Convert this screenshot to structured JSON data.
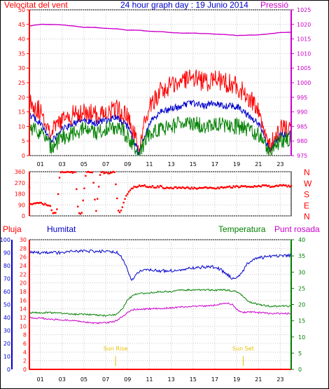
{
  "chart_data": [
    {
      "type": "line",
      "title": "24 hour graph day : 19 Junio 2014",
      "ylabel_left": "Velocitat del vent",
      "ylabel_right": "Pressió",
      "x_ticks": [
        "01",
        "03",
        "05",
        "07",
        "09",
        "11",
        "13",
        "15",
        "17",
        "19",
        "21",
        "23"
      ],
      "xlim": [
        0,
        24
      ],
      "ylim_left": [
        0,
        50
      ],
      "ylim_right": [
        975,
        1025
      ],
      "y_ticks_left": [
        "0",
        "5",
        "10",
        "15",
        "20",
        "25",
        "30",
        "35",
        "40",
        "45",
        "50"
      ],
      "y_ticks_right": [
        "975",
        "980",
        "985",
        "990",
        "995",
        "1000",
        "1005",
        "1010",
        "1015",
        "1020",
        "1025"
      ],
      "grid": true,
      "series": [
        {
          "color": "#ff0000",
          "axis": "left",
          "x": [
            0,
            1,
            2,
            3,
            4,
            5,
            6,
            7,
            8,
            9,
            10,
            11,
            12,
            13,
            14,
            15,
            16,
            17,
            18,
            19,
            20,
            21,
            22,
            23,
            24
          ],
          "values": [
            19,
            15,
            8,
            12,
            14,
            15,
            14,
            15,
            16,
            13,
            3,
            16,
            22,
            24,
            26,
            27,
            25,
            26,
            25,
            24,
            20,
            16,
            3,
            9,
            10
          ]
        },
        {
          "color": "#0000cc",
          "axis": "left",
          "x": [
            0,
            1,
            2,
            3,
            4,
            5,
            6,
            7,
            8,
            9,
            10,
            11,
            12,
            13,
            14,
            15,
            16,
            17,
            18,
            19,
            20,
            21,
            22,
            23,
            24
          ],
          "values": [
            14,
            11,
            5,
            9,
            11,
            12,
            11,
            12,
            13,
            10,
            1,
            11,
            15,
            16,
            17,
            18,
            17,
            18,
            17,
            17,
            14,
            11,
            2,
            7,
            8
          ]
        },
        {
          "color": "#008000",
          "axis": "left",
          "x": [
            0,
            1,
            2,
            3,
            4,
            5,
            6,
            7,
            8,
            9,
            10,
            11,
            12,
            13,
            14,
            15,
            16,
            17,
            18,
            19,
            20,
            21,
            22,
            23,
            24
          ],
          "values": [
            10,
            8,
            3,
            6,
            8,
            9,
            8,
            9,
            10,
            7,
            0,
            8,
            9,
            10,
            11,
            11,
            10,
            11,
            10,
            10,
            9,
            7,
            1,
            5,
            6
          ]
        },
        {
          "color": "#cc00cc",
          "axis": "right",
          "x": [
            0,
            1,
            2,
            3,
            4,
            5,
            6,
            7,
            8,
            9,
            10,
            11,
            12,
            13,
            14,
            15,
            16,
            17,
            18,
            19,
            20,
            21,
            22,
            23,
            24
          ],
          "values": [
            1019.5,
            1020,
            1020,
            1019.8,
            1019.5,
            1019,
            1019,
            1018.6,
            1018.5,
            1018,
            1018,
            1017.6,
            1017.5,
            1017.2,
            1017,
            1017,
            1016.9,
            1016.7,
            1016.5,
            1016.2,
            1016.3,
            1016.4,
            1016.8,
            1017.2,
            1017.3
          ]
        }
      ]
    },
    {
      "type": "scatter",
      "ylabel_right_letters": [
        "N",
        "W",
        "S",
        "E",
        "N"
      ],
      "y_ticks_left": [
        "0",
        "90",
        "180",
        "270",
        "360"
      ],
      "ylim": [
        0,
        360
      ],
      "xlim": [
        0,
        24
      ],
      "grid": true,
      "series": [
        {
          "color": "#ff0000",
          "x": [
            0.1,
            0.4,
            0.7,
            1,
            1.3,
            1.6,
            1.9,
            2.2,
            2.5,
            2.8,
            3.1,
            3.3,
            3.6,
            3.9,
            4.2,
            4.5,
            4.8,
            5.2,
            5.5,
            5.8,
            6.1,
            6.5,
            6.8,
            7.1,
            7.5,
            7.8,
            8.2,
            8.5,
            8.8,
            9.1,
            9.5,
            10,
            10.5,
            11,
            11.5,
            12,
            12.5,
            13,
            13.5,
            14,
            14.5,
            15,
            15.5,
            16,
            16.5,
            17,
            17.5,
            18,
            18.5,
            19,
            19.5,
            20,
            20.5,
            21,
            21.5,
            22,
            22.5,
            23,
            23.5,
            24
          ],
          "values": [
            100,
            98,
            102,
            105,
            96,
            95,
            80,
            20,
            25,
            356,
            352,
            355,
            358,
            357,
            354,
            15,
            22,
            356,
            355,
            352,
            25,
            357,
            354,
            352,
            350,
            356,
            10,
            60,
            150,
            200,
            230,
            245,
            245,
            240,
            235,
            240,
            225,
            230,
            228,
            232,
            228,
            225,
            225,
            228,
            230,
            225,
            228,
            232,
            235,
            238,
            240,
            238,
            240,
            242,
            245,
            240,
            245,
            248,
            245,
            242
          ]
        }
      ]
    },
    {
      "type": "line",
      "legend": [
        "Pluja",
        "Humitat",
        "Temperatura",
        "Punt rosada"
      ],
      "y_ticks_pluja": [
        "0",
        "2",
        "4",
        "6",
        "8",
        "10",
        "12",
        "14",
        "16",
        "18",
        "20",
        "22",
        "24",
        "26",
        "28",
        "30"
      ],
      "y_ticks_humitat": [
        "0",
        "10",
        "20",
        "30",
        "40",
        "50",
        "60",
        "70",
        "80",
        "90",
        "100"
      ],
      "y_ticks_right": [
        "0",
        "5",
        "10",
        "15",
        "20",
        "25",
        "30",
        "35",
        "40"
      ],
      "xlim": [
        0,
        24
      ],
      "grid": true,
      "annotations": [
        {
          "text": "Sun Rise",
          "x": 7.9
        },
        {
          "text": "Sun Set",
          "x": 19.6
        }
      ],
      "series": [
        {
          "name": "Humitat",
          "color": "#0000cc",
          "axis": "humitat",
          "x": [
            0,
            1,
            2,
            3,
            4,
            5,
            6,
            7,
            8,
            8.6,
            9,
            9.4,
            10,
            11,
            12,
            13,
            14,
            15,
            16,
            17,
            17.5,
            18,
            18.6,
            19,
            19.6,
            20,
            21,
            22,
            23,
            24
          ],
          "values": [
            90,
            90,
            90,
            90,
            91,
            91,
            91,
            91,
            90,
            85,
            76,
            69,
            75,
            77,
            76,
            76,
            77,
            78,
            79,
            79,
            77,
            74,
            70,
            71,
            76,
            82,
            86,
            87,
            88,
            88
          ]
        },
        {
          "name": "Temperatura",
          "color": "#008000",
          "axis": "right",
          "x": [
            0,
            1,
            2,
            3,
            4,
            5,
            6,
            7,
            8,
            8.6,
            9,
            9.6,
            10,
            11,
            12,
            13,
            14,
            15,
            16,
            17,
            18,
            19,
            19.6,
            20,
            21,
            22,
            23,
            24
          ],
          "values": [
            17.5,
            17.5,
            17.5,
            17.3,
            17,
            17,
            16.8,
            16.6,
            17,
            19,
            21.5,
            23,
            23.5,
            23.5,
            24,
            24,
            24.5,
            24.5,
            24.5,
            24.5,
            24.5,
            24,
            22.5,
            21,
            20,
            19.5,
            19.5,
            19.5
          ]
        },
        {
          "name": "Punt rosada",
          "color": "#cc00cc",
          "axis": "right",
          "x": [
            0,
            1,
            2,
            3,
            4,
            5,
            6,
            7,
            8,
            8.6,
            9,
            9.6,
            10,
            11,
            12,
            13,
            14,
            15,
            16,
            17,
            18,
            18.6,
            19,
            19.6,
            20,
            21,
            22,
            23,
            24
          ],
          "values": [
            16,
            15.8,
            15.5,
            15.2,
            15,
            14.6,
            14.3,
            14.3,
            15,
            16.5,
            17.5,
            18.5,
            18.5,
            18.7,
            18.8,
            19,
            19.3,
            19.5,
            19.5,
            19.8,
            20.5,
            20,
            18.5,
            17.5,
            17.8,
            17.5,
            17.3,
            17.2,
            17.2
          ]
        },
        {
          "name": "Pluja",
          "color": "#ff0000",
          "axis": "pluja",
          "x": [
            0,
            24
          ],
          "values": [
            0,
            0
          ]
        }
      ]
    }
  ],
  "labels": {
    "top_left": "Velocitat del vent",
    "top_title": "24 hour graph day : 19 Junio 2014",
    "top_right": "Pressió",
    "pluja": "Pluja",
    "humitat": "Humitat",
    "temperatura": "Temperatura",
    "punt_rosada": "Punt rosada",
    "sun_rise": "Sun Rise",
    "sun_set": "Sun Set"
  },
  "colors": {
    "wind_gust": "#ff0000",
    "wind_avg": "#0000cc",
    "wind_low": "#008000",
    "pressure": "#cc00cc",
    "direction": "#ff0000",
    "humidity": "#0000cc",
    "temperature": "#008000",
    "dewpoint": "#cc00cc",
    "rain": "#ff0000",
    "grid": "#c8c8c8",
    "sun_marker": "#e6c000"
  }
}
